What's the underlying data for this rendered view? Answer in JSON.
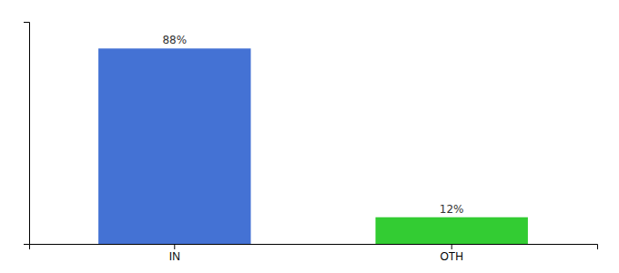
{
  "chart_data": {
    "type": "bar",
    "categories": [
      "IN",
      "OTH"
    ],
    "values": [
      88,
      12
    ],
    "colors": [
      "#4472D4",
      "#33CC33"
    ],
    "ylim": [
      0,
      100
    ],
    "data_labels": true,
    "value_labels": [
      "88%",
      "12%"
    ],
    "tick_labels": "x"
  }
}
